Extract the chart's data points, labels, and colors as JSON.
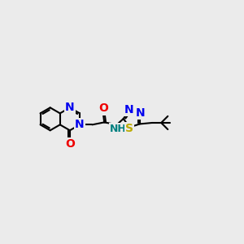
{
  "bg_color": "#ebebeb",
  "atom_colors": {
    "C": "#000000",
    "N": "#0000ee",
    "O": "#ee0000",
    "S": "#bbaa00",
    "H": "#008080"
  },
  "bond_color": "#000000",
  "bond_width": 1.5,
  "font_size": 10,
  "fig_size": [
    3.0,
    3.0
  ],
  "dpi": 100,
  "xlim": [
    -3.8,
    4.2
  ],
  "ylim": [
    -2.8,
    2.8
  ],
  "ring_r": 0.38,
  "td_r": 0.3
}
